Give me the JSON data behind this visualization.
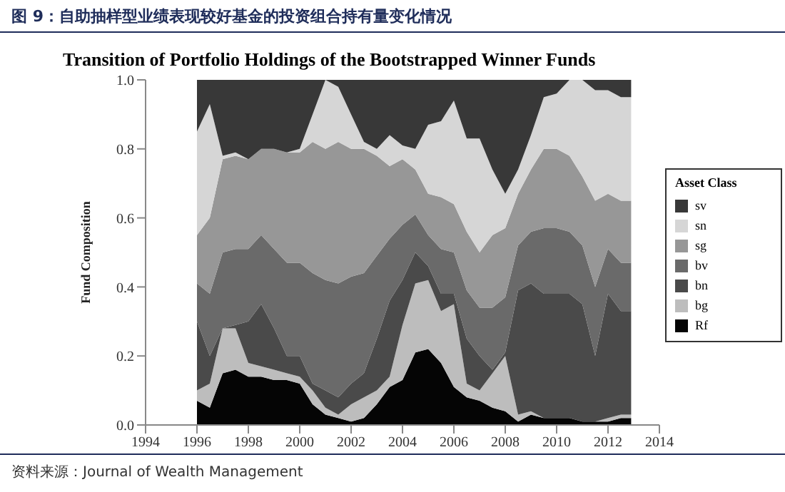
{
  "chart_data": {
    "type": "area",
    "title": "图 9：自助抽样型业绩表现较好基金的投资组合持有量变化情况",
    "subtitle": "Transition of Portfolio Holdings of the Bootstrapped Winner Funds",
    "ylabel": "Fund Composition",
    "legend_title": "Asset Class",
    "annotations": [
      "资料来源：Journal of Wealth Management"
    ],
    "stacked": true,
    "legend": "right",
    "x": [
      1996,
      1996.5,
      1997,
      1997.5,
      1998,
      1998.5,
      1999,
      1999.5,
      2000,
      2000.5,
      2001,
      2001.5,
      2002,
      2002.5,
      2003,
      2003.5,
      2004,
      2004.5,
      2005,
      2005.5,
      2006,
      2006.5,
      2007,
      2007.5,
      2008,
      2008.5,
      2009,
      2009.5,
      2010,
      2010.5,
      2011,
      2011.5,
      2012,
      2012.5,
      2012.9
    ],
    "xlim": [
      1994,
      2014
    ],
    "xticks": [
      1994,
      1996,
      1998,
      2000,
      2002,
      2004,
      2006,
      2008,
      2010,
      2012,
      2014
    ],
    "ylim": [
      0,
      1
    ],
    "yticks": [
      {
        "value": 0,
        "label": "0.0"
      },
      0.2,
      0.4,
      0.6,
      0.8,
      {
        "value": 1,
        "label": "1.0"
      }
    ],
    "series": [
      {
        "name": "Rf",
        "color": "#050505",
        "values": [
          0.07,
          0.05,
          0.15,
          0.16,
          0.14,
          0.14,
          0.13,
          0.13,
          0.12,
          0.06,
          0.03,
          0.02,
          0.01,
          0.02,
          0.06,
          0.11,
          0.13,
          0.21,
          0.22,
          0.18,
          0.11,
          0.08,
          0.07,
          0.05,
          0.04,
          0.01,
          0.03,
          0.02,
          0.02,
          0.02,
          0.01,
          0.01,
          0.01,
          0.02,
          0.02
        ]
      },
      {
        "name": "bg",
        "color": "#bdbdbd",
        "values": [
          0.03,
          0.07,
          0.13,
          0.12,
          0.04,
          0.03,
          0.03,
          0.02,
          0.02,
          0.04,
          0.02,
          0.01,
          0.05,
          0.06,
          0.04,
          0.03,
          0.16,
          0.2,
          0.2,
          0.15,
          0.24,
          0.04,
          0.03,
          0.1,
          0.16,
          0.02,
          0.01,
          0,
          0,
          0,
          0,
          0,
          0.01,
          0.01,
          0.01
        ]
      },
      {
        "name": "bn",
        "color": "#4a4a4a",
        "values": [
          0.2,
          0.08,
          0,
          0.01,
          0.12,
          0.18,
          0.12,
          0.05,
          0.06,
          0.02,
          0.05,
          0.05,
          0.06,
          0.07,
          0.15,
          0.22,
          0.13,
          0.09,
          0.04,
          0.05,
          0.03,
          0.13,
          0.1,
          0.01,
          0.01,
          0.36,
          0.37,
          0.36,
          0.36,
          0.36,
          0.34,
          0.19,
          0.36,
          0.3,
          0.3
        ]
      },
      {
        "name": "bv",
        "color": "#6a6a6a",
        "values": [
          0.11,
          0.18,
          0.22,
          0.22,
          0.21,
          0.2,
          0.23,
          0.27,
          0.27,
          0.32,
          0.32,
          0.33,
          0.31,
          0.29,
          0.24,
          0.18,
          0.16,
          0.11,
          0.09,
          0.13,
          0.12,
          0.14,
          0.14,
          0.18,
          0.16,
          0.13,
          0.15,
          0.19,
          0.19,
          0.18,
          0.17,
          0.2,
          0.13,
          0.14,
          0.14
        ]
      },
      {
        "name": "sg",
        "color": "#979797",
        "values": [
          0.14,
          0.22,
          0.27,
          0.27,
          0.26,
          0.25,
          0.29,
          0.32,
          0.32,
          0.38,
          0.38,
          0.41,
          0.37,
          0.36,
          0.29,
          0.21,
          0.19,
          0.13,
          0.12,
          0.15,
          0.14,
          0.17,
          0.16,
          0.21,
          0.2,
          0.15,
          0.18,
          0.23,
          0.23,
          0.22,
          0.2,
          0.25,
          0.16,
          0.18,
          0.18
        ]
      },
      {
        "name": "sn",
        "color": "#d6d6d6",
        "values": [
          0.3,
          0.33,
          0.01,
          0.01,
          0,
          0,
          0,
          0,
          0.01,
          0.08,
          0.2,
          0.16,
          0.1,
          0.02,
          0.02,
          0.09,
          0.04,
          0.06,
          0.2,
          0.22,
          0.3,
          0.27,
          0.33,
          0.19,
          0.1,
          0.07,
          0.1,
          0.15,
          0.16,
          0.22,
          0.28,
          0.32,
          0.3,
          0.3,
          0.3
        ]
      },
      {
        "name": "sv",
        "color": "#383838",
        "values": [
          0.15,
          0.07,
          0.22,
          0.21,
          0.23,
          0.2,
          0.2,
          0.21,
          0.2,
          0.1,
          0,
          0.02,
          0.1,
          0.18,
          0.2,
          0.16,
          0.19,
          0.2,
          0.13,
          0.12,
          0.06,
          0.17,
          0.17,
          0.26,
          0.33,
          0.26,
          0.16,
          0.05,
          0.04,
          0,
          0,
          0.03,
          0.03,
          0.05,
          0.05
        ]
      }
    ]
  }
}
